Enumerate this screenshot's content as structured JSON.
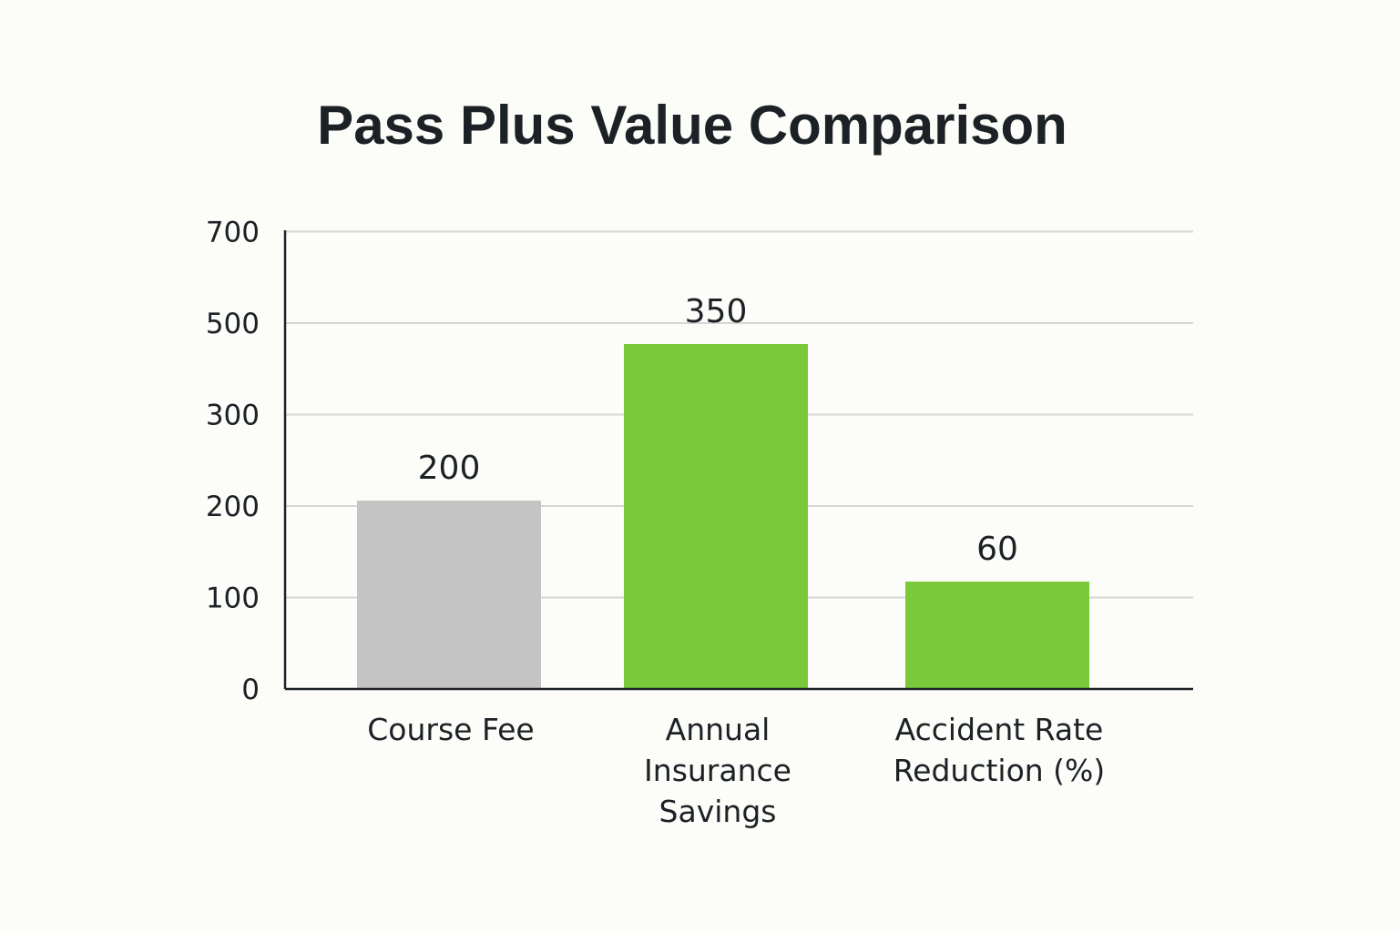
{
  "chart_data": {
    "type": "bar",
    "title": "Pass Plus Value Comparison",
    "xlabel": "",
    "ylabel": "",
    "categories": [
      [
        "Course Fee"
      ],
      [
        "Annual",
        "Insurance",
        "Savings"
      ],
      [
        "Accident Rate",
        "Reduction (%)"
      ]
    ],
    "values": [
      200,
      350,
      60
    ],
    "value_labels": [
      "200",
      "350",
      "60"
    ],
    "y_ticks": [
      "0",
      "100",
      "200",
      "300",
      "500",
      "700"
    ],
    "bar_colors": [
      "#c4c4c4",
      "#7ac93a",
      "#7ac93a"
    ],
    "grid": true,
    "legend": "none"
  }
}
